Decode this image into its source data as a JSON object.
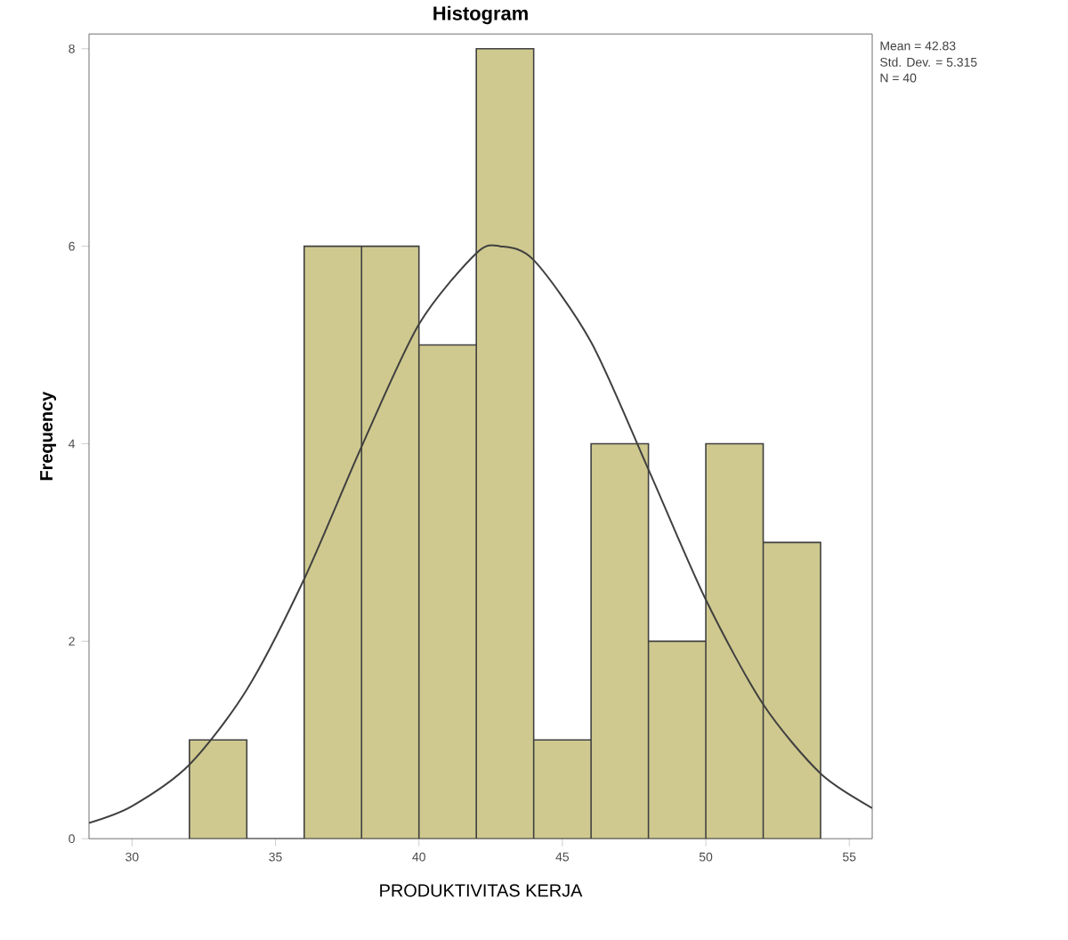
{
  "chart_data": {
    "type": "histogram",
    "title": "Histogram",
    "xlabel": "PRODUKTIVITAS KERJA",
    "ylabel": "Frequency",
    "bins": [
      32,
      34,
      36,
      38,
      40,
      42,
      44,
      46,
      48,
      50,
      52,
      54
    ],
    "values": [
      1,
      0,
      6,
      6,
      5,
      8,
      1,
      4,
      2,
      4,
      3
    ],
    "color": "#cfc98f",
    "series": [
      {
        "type": "line",
        "color": "#404040",
        "marker": "none",
        "line_style": "solid",
        "x": [
          28.5,
          30,
          32,
          34,
          36,
          38,
          40,
          42,
          42.83,
          44,
          46,
          48,
          50,
          52,
          54,
          55.8
        ],
        "values": [
          0.16,
          0.33,
          0.75,
          1.51,
          2.63,
          3.97,
          5.21,
          5.93,
          6.0,
          5.86,
          5.03,
          3.74,
          2.42,
          1.36,
          0.66,
          0.31
        ]
      }
    ],
    "xlim": [
      28.5,
      55.8
    ],
    "ylim": [
      0,
      8.15
    ],
    "xticks": [
      30,
      35,
      40,
      45,
      50,
      55
    ],
    "yticks": [
      0,
      2,
      4,
      6,
      8
    ],
    "grid": false,
    "annotations": [
      "Mean = 42.83",
      "Std. Dev. = 5.315",
      "N = 40"
    ]
  }
}
